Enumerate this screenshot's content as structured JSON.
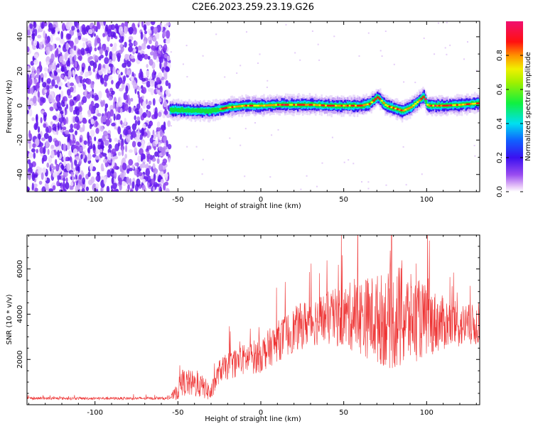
{
  "figure_title": "C2E6.2023.259.23.19.G26",
  "chart_data": [
    {
      "type": "heatmap",
      "name": "spectrogram",
      "xlabel": "Height of straight line (km)",
      "ylabel": "Frequency (Hz)",
      "xlim": [
        -141,
        132
      ],
      "ylim": [
        -50,
        49
      ],
      "xticks": [
        -100,
        -50,
        0,
        50,
        100
      ],
      "xtick_labels": [
        "-100",
        "-50",
        "0",
        "50",
        "100"
      ],
      "yticks": [
        -40,
        -20,
        0,
        20,
        40
      ],
      "ytick_labels": [
        "-40",
        "-20",
        "0",
        "20",
        "40"
      ],
      "colorbar": {
        "label": "Normalized spectral amplitude",
        "range": [
          0,
          1
        ],
        "ticks": [
          0.0,
          0.2,
          0.4,
          0.6,
          0.8
        ],
        "tick_labels": [
          "0.0",
          "0.2",
          "0.4",
          "0.6",
          "0.8"
        ],
        "colormap": "hsv-like (purple-blue-cyan-green-yellow-red-magenta)"
      },
      "noise_region_x": [
        -141,
        -55
      ],
      "signal_track": {
        "x": [
          -55,
          -50,
          -40,
          -30,
          -20,
          -10,
          0,
          10,
          20,
          30,
          40,
          50,
          60,
          65,
          70,
          75,
          80,
          85,
          90,
          95,
          98,
          100,
          110,
          120,
          132
        ],
        "frequency_hz": [
          -2.5,
          -2.5,
          -3,
          -3,
          -1,
          0,
          0,
          0.5,
          0.5,
          0.5,
          0,
          0,
          0,
          1,
          5,
          0,
          -1.5,
          -3,
          -1,
          3,
          5.5,
          0,
          0,
          0.5,
          1.5
        ]
      }
    },
    {
      "type": "line",
      "name": "snr",
      "xlabel": "Height of straight line (km)",
      "ylabel": "SNR (10 * v/v)",
      "xlim": [
        -141,
        132
      ],
      "ylim": [
        0,
        7500
      ],
      "xticks": [
        -100,
        -50,
        0,
        50,
        100
      ],
      "xtick_labels": [
        "-100",
        "-50",
        "0",
        "50",
        "100"
      ],
      "yticks": [
        2000,
        4000,
        6000
      ],
      "ytick_labels": [
        "2000",
        "4000",
        "6000"
      ],
      "series_color": "#ee3333",
      "envelope": {
        "x": [
          -141,
          -55,
          -50,
          -48,
          -40,
          -35,
          -30,
          -25,
          -20,
          -10,
          0,
          10,
          20,
          30,
          40,
          50,
          60,
          70,
          80,
          85,
          90,
          100,
          110,
          120,
          132
        ],
        "mean": [
          280,
          280,
          600,
          1000,
          900,
          800,
          500,
          1500,
          1700,
          2000,
          2200,
          2800,
          3300,
          3700,
          3800,
          3900,
          3900,
          3800,
          3700,
          3900,
          3800,
          3700,
          3600,
          3500,
          3500
        ],
        "spread": [
          60,
          60,
          400,
          600,
          600,
          500,
          400,
          500,
          600,
          700,
          800,
          900,
          1000,
          1100,
          1200,
          1400,
          1700,
          2000,
          2200,
          2500,
          2000,
          1600,
          1200,
          1000,
          900
        ]
      }
    }
  ]
}
